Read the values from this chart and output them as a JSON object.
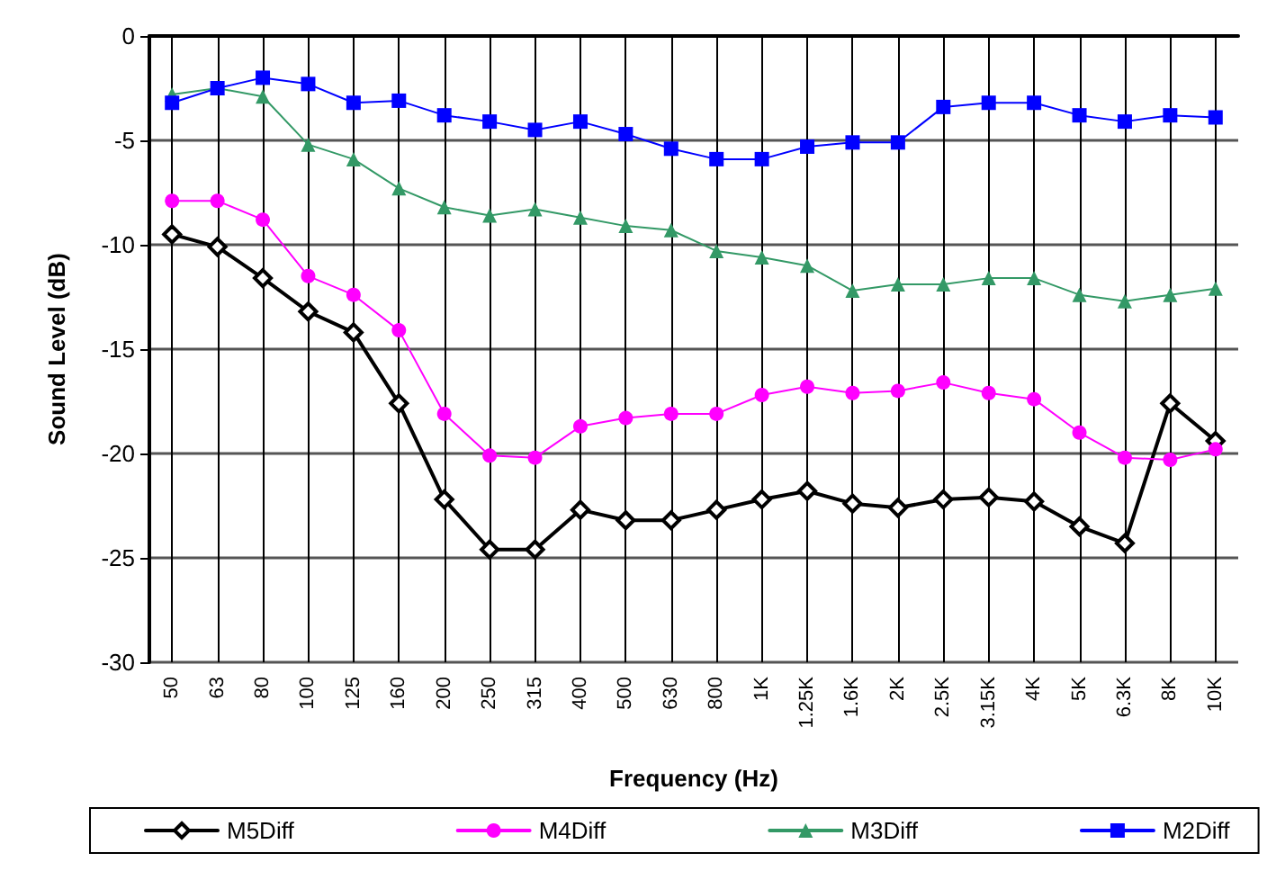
{
  "chart_data": {
    "type": "line",
    "xlabel": "Frequency (Hz)",
    "ylabel": "Sound Level (dB)",
    "categories": [
      "50",
      "63",
      "80",
      "100",
      "125",
      "160",
      "200",
      "250",
      "315",
      "400",
      "500",
      "630",
      "800",
      "1K",
      "1.25K",
      "1.6K",
      "2K",
      "2.5K",
      "3.15K",
      "4K",
      "5K",
      "6.3K",
      "8K",
      "10K"
    ],
    "series": [
      {
        "name": "M5Diff",
        "color": "#000000",
        "marker": "diamond",
        "values": [
          -9.5,
          -10.1,
          -11.6,
          -13.2,
          -14.2,
          -17.6,
          -22.2,
          -24.6,
          -24.6,
          -22.7,
          -23.2,
          -23.2,
          -22.7,
          -22.2,
          -21.8,
          -22.4,
          -22.6,
          -22.2,
          -22.1,
          -22.3,
          -23.5,
          -24.3,
          -17.6,
          -19.4
        ]
      },
      {
        "name": "M4Diff",
        "color": "#ff00ff",
        "marker": "circle",
        "values": [
          -7.9,
          -7.9,
          -8.8,
          -11.5,
          -12.4,
          -14.1,
          -18.1,
          -20.1,
          -20.2,
          -18.7,
          -18.3,
          -18.1,
          -18.1,
          -17.2,
          -16.8,
          -17.1,
          -17.0,
          -16.6,
          -17.1,
          -17.4,
          -19.0,
          -20.2,
          -20.3,
          -19.8
        ]
      },
      {
        "name": "M3Diff",
        "color": "#339966",
        "marker": "triangle",
        "values": [
          -2.8,
          -2.5,
          -2.9,
          -5.2,
          -5.9,
          -7.3,
          -8.2,
          -8.6,
          -8.3,
          -8.7,
          -9.1,
          -9.3,
          -10.3,
          -10.6,
          -11.0,
          -12.2,
          -11.9,
          -11.9,
          -11.6,
          -11.6,
          -12.4,
          -12.7,
          -12.4,
          -12.1
        ]
      },
      {
        "name": "M2Diff",
        "color": "#0000ff",
        "marker": "square",
        "values": [
          -3.2,
          -2.5,
          -2.0,
          -2.3,
          -3.2,
          -3.1,
          -3.8,
          -4.1,
          -4.5,
          -4.1,
          -4.7,
          -5.4,
          -5.9,
          -5.9,
          -5.3,
          -5.1,
          -5.1,
          -3.4,
          -3.2,
          -3.2,
          -3.8,
          -4.1,
          -3.8,
          -3.9
        ]
      }
    ],
    "ylim": [
      -30,
      0
    ],
    "yticks": [
      -30,
      -25,
      -20,
      -15,
      -10,
      -5,
      0
    ],
    "grid": true,
    "legend": "bottom"
  }
}
